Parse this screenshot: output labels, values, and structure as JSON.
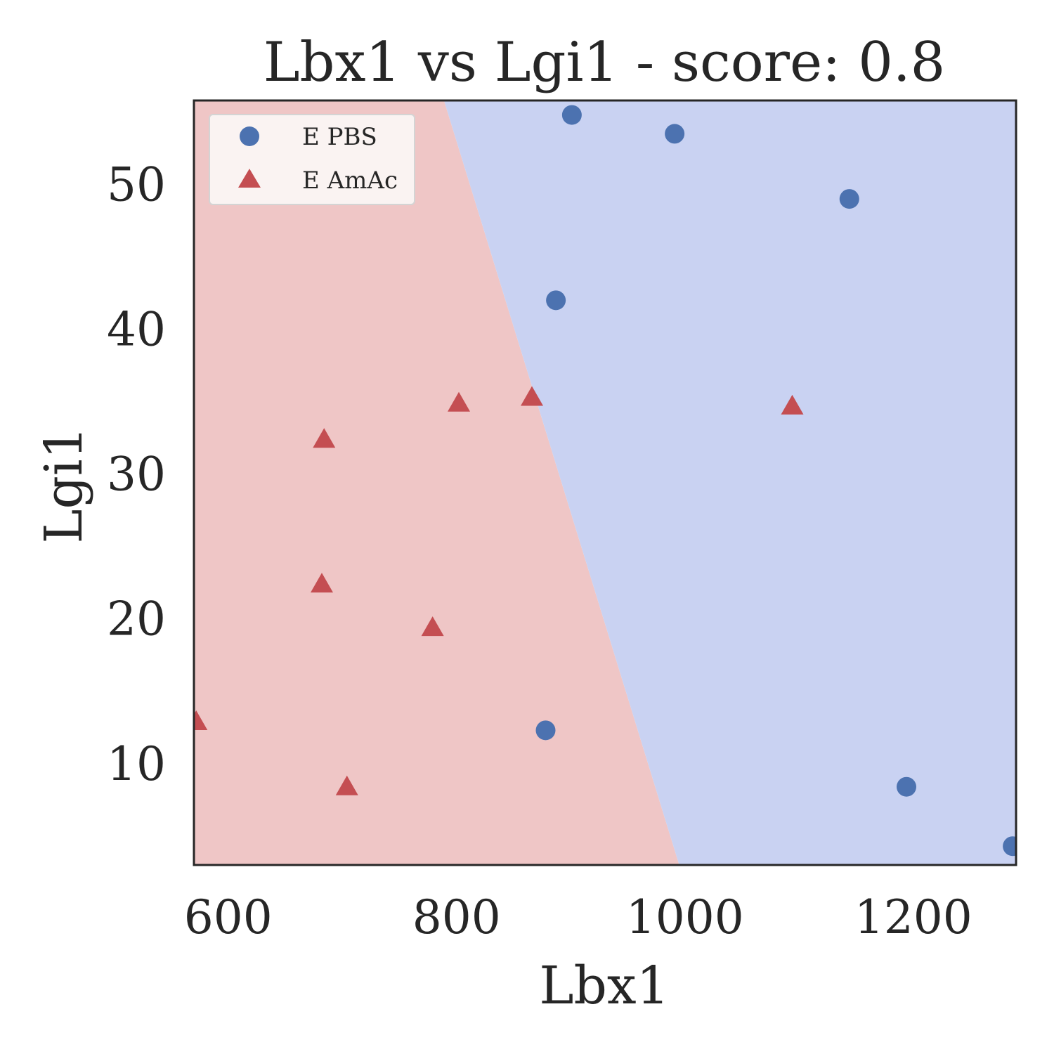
{
  "chart_data": {
    "type": "scatter",
    "title": "Lbx1 vs Lgi1 - score: 0.8",
    "xlabel": "Lbx1",
    "ylabel": "Lgi1",
    "xlim": [
      570,
      1290
    ],
    "ylim": [
      3,
      55.8
    ],
    "xticks": [
      600,
      800,
      1000,
      1200
    ],
    "yticks": [
      10,
      20,
      30,
      40,
      50
    ],
    "grid": false,
    "legend_position": "top-left",
    "decision_boundary": {
      "points": [
        [
          789,
          55.8
        ],
        [
          995,
          3
        ]
      ],
      "left_region_class": "E AmAc",
      "right_region_class": "E PBS",
      "left_region_color": "#efc6c6",
      "right_region_color": "#c9d2f2"
    },
    "series": [
      {
        "name": "E PBS",
        "marker": "circle",
        "color": "#4c72b0",
        "points": [
          [
            901,
            54.8
          ],
          [
            991,
            53.5
          ],
          [
            1144,
            49.0
          ],
          [
            887,
            42.0
          ],
          [
            878,
            12.3
          ],
          [
            1194,
            8.4
          ],
          [
            1287,
            4.3
          ]
        ]
      },
      {
        "name": "E AmAc",
        "marker": "triangle",
        "color": "#c44e52",
        "points": [
          [
            866,
            35.2
          ],
          [
            802,
            34.8
          ],
          [
            1094,
            34.6
          ],
          [
            684,
            32.3
          ],
          [
            682,
            22.3
          ],
          [
            779,
            19.3
          ],
          [
            572,
            12.8
          ],
          [
            704,
            8.3
          ]
        ]
      }
    ]
  }
}
